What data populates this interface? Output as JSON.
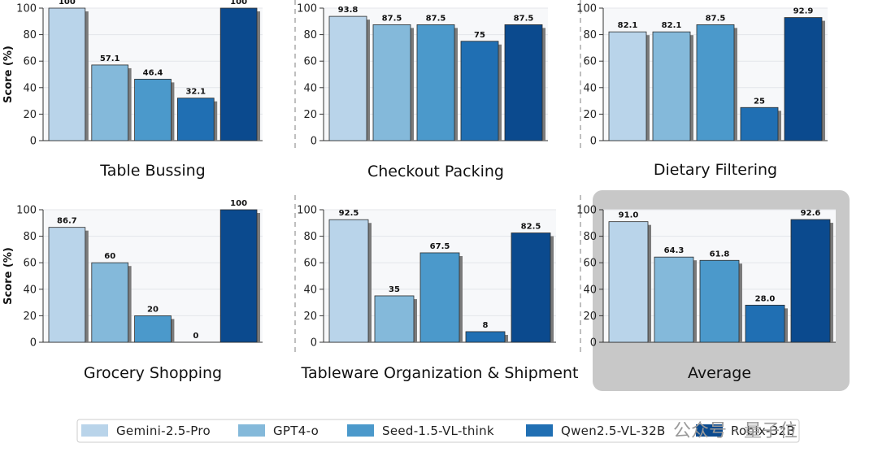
{
  "chart_data": [
    {
      "type": "bar",
      "title": "Table Bussing",
      "ylabel": "Score (%)",
      "ylim": [
        0,
        100
      ],
      "categories": [
        "Gemini-2.5-Pro",
        "GPT4-o",
        "Seed-1.5-VL-think",
        "Qwen2.5-VL-32B",
        "Robix-32B"
      ],
      "values": [
        100,
        57.1,
        46.4,
        32.1,
        100
      ],
      "labels": [
        "100",
        "57.1",
        "46.4",
        "32.1",
        "100"
      ]
    },
    {
      "type": "bar",
      "title": "Checkout Packing",
      "ylabel": "",
      "ylim": [
        0,
        100
      ],
      "categories": [
        "Gemini-2.5-Pro",
        "GPT4-o",
        "Seed-1.5-VL-think",
        "Qwen2.5-VL-32B",
        "Robix-32B"
      ],
      "values": [
        93.8,
        87.5,
        87.5,
        75,
        87.5
      ],
      "labels": [
        "93.8",
        "87.5",
        "87.5",
        "75",
        "87.5"
      ]
    },
    {
      "type": "bar",
      "title": "Dietary Filtering",
      "ylabel": "",
      "ylim": [
        0,
        100
      ],
      "categories": [
        "Gemini-2.5-Pro",
        "GPT4-o",
        "Seed-1.5-VL-think",
        "Qwen2.5-VL-32B",
        "Robix-32B"
      ],
      "values": [
        82.1,
        82.1,
        87.5,
        25,
        92.9
      ],
      "labels": [
        "82.1",
        "82.1",
        "87.5",
        "25",
        "92.9"
      ]
    },
    {
      "type": "bar",
      "title": "Grocery Shopping",
      "ylabel": "Score (%)",
      "ylim": [
        0,
        100
      ],
      "categories": [
        "Gemini-2.5-Pro",
        "GPT4-o",
        "Seed-1.5-VL-think",
        "Qwen2.5-VL-32B",
        "Robix-32B"
      ],
      "values": [
        86.7,
        60,
        20,
        0,
        100
      ],
      "labels": [
        "86.7",
        "60",
        "20",
        "0",
        "100"
      ]
    },
    {
      "type": "bar",
      "title": "Tableware Organization & Shipment",
      "ylabel": "",
      "ylim": [
        0,
        100
      ],
      "categories": [
        "Gemini-2.5-Pro",
        "GPT4-o",
        "Seed-1.5-VL-think",
        "Qwen2.5-VL-32B",
        "Robix-32B"
      ],
      "values": [
        92.5,
        35,
        67.5,
        8,
        82.5
      ],
      "labels": [
        "92.5",
        "35",
        "67.5",
        "8",
        "82.5"
      ]
    },
    {
      "type": "bar",
      "title": "Average",
      "ylabel": "",
      "ylim": [
        0,
        100
      ],
      "highlighted": true,
      "categories": [
        "Gemini-2.5-Pro",
        "GPT4-o",
        "Seed-1.5-VL-think",
        "Qwen2.5-VL-32B",
        "Robix-32B"
      ],
      "values": [
        91.0,
        64.3,
        61.8,
        28.0,
        92.6
      ],
      "labels": [
        "91.0",
        "64.3",
        "61.8",
        "28.0",
        "92.6"
      ]
    }
  ],
  "yticks": [
    "0",
    "20",
    "40",
    "60",
    "80",
    "100"
  ],
  "legend": {
    "placement": "bottom",
    "entries": [
      {
        "name": "Gemini-2.5-Pro",
        "color": "#b9d4ea"
      },
      {
        "name": "GPT4-o",
        "color": "#84b9da"
      },
      {
        "name": "Seed-1.5-VL-think",
        "color": "#4b99cb"
      },
      {
        "name": "Qwen2.5-VL-32B",
        "color": "#206fb3"
      },
      {
        "name": "Robix-32B",
        "color": "#0b4a8e"
      }
    ]
  },
  "watermark": "公众号 · 量子位"
}
